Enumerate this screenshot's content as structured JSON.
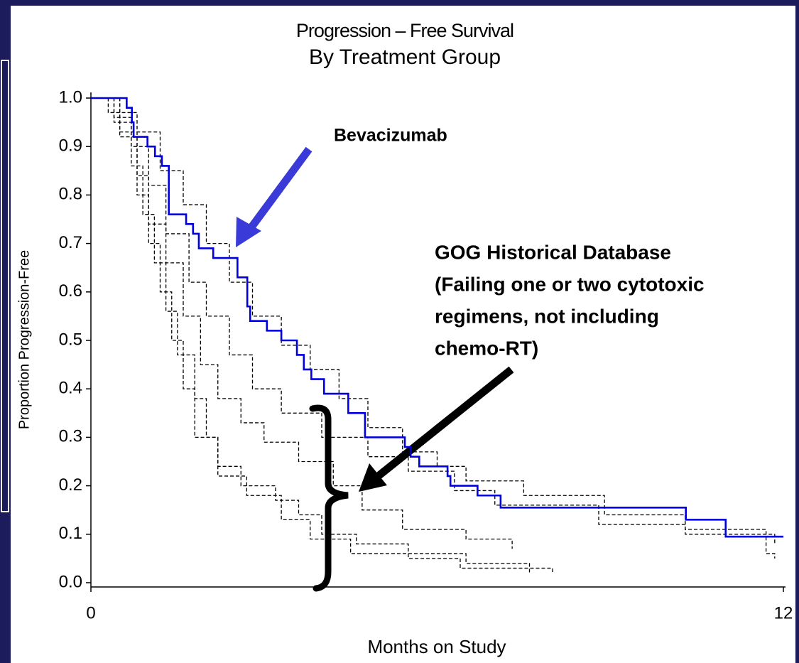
{
  "chart_data": {
    "type": "line",
    "step": "post",
    "title": "Progression – Free  Survival",
    "subtitle": "By Treatment Group",
    "x_label": "Months on Study",
    "y_label": "Proportion Progression-Free",
    "xlim": [
      0,
      12
    ],
    "xticks": [
      0,
      12
    ],
    "ylim": [
      0,
      1
    ],
    "yticks": [
      {
        "value": 0,
        "label": "0.0"
      },
      0.1,
      0.2,
      0.3,
      0.4,
      0.5,
      0.6,
      0.7,
      0.8,
      0.9,
      {
        "value": 1,
        "label": "1.0"
      }
    ],
    "grid": false,
    "series": [
      {
        "color": "#0000dd",
        "dash": false,
        "x": [
          0,
          0.62,
          0.71,
          0.74,
          0.98,
          1.11,
          1.23,
          1.35,
          1.65,
          1.77,
          1.87,
          2.12,
          2.54,
          2.71,
          2.76,
          3.05,
          3.3,
          3.57,
          3.69,
          3.82,
          4.04,
          4.46,
          4.75,
          5.44,
          5.54,
          5.69,
          6.18,
          6.23,
          6.7,
          7.1,
          10.31,
          11.0,
          12.0
        ],
        "values": [
          1.0,
          0.98,
          0.95,
          0.92,
          0.9,
          0.88,
          0.86,
          0.76,
          0.74,
          0.72,
          0.69,
          0.67,
          0.63,
          0.57,
          0.54,
          0.52,
          0.5,
          0.47,
          0.44,
          0.42,
          0.39,
          0.35,
          0.3,
          0.28,
          0.26,
          0.24,
          0.22,
          0.2,
          0.18,
          0.155,
          0.13,
          0.095,
          0.095
        ]
      },
      {
        "color": "#000000",
        "dash": true,
        "x": [
          0,
          0.3,
          0.8,
          1.2,
          1.6,
          2.0,
          2.4,
          2.8,
          3.3,
          3.8,
          4.3,
          4.8,
          5.4,
          6.0,
          6.5,
          7.5,
          8.9,
          10.3,
          11.7,
          11.85
        ],
        "values": [
          1.0,
          0.97,
          0.93,
          0.85,
          0.78,
          0.7,
          0.62,
          0.55,
          0.49,
          0.44,
          0.38,
          0.32,
          0.27,
          0.24,
          0.21,
          0.18,
          0.14,
          0.11,
          0.06,
          0.05
        ]
      },
      {
        "color": "#000000",
        "dash": true,
        "x": [
          0,
          0.4,
          0.7,
          1.0,
          1.3,
          1.7,
          2.0,
          2.4,
          2.8,
          3.3,
          4.0,
          4.8,
          5.5,
          6.3,
          7.0,
          8.8,
          10.3,
          11.85
        ],
        "values": [
          1.0,
          0.96,
          0.9,
          0.82,
          0.72,
          0.62,
          0.55,
          0.47,
          0.4,
          0.35,
          0.3,
          0.26,
          0.23,
          0.19,
          0.16,
          0.12,
          0.1,
          0.08
        ]
      },
      {
        "color": "#000000",
        "dash": true,
        "x": [
          0,
          0.5,
          0.8,
          1.0,
          1.3,
          1.6,
          1.9,
          2.2,
          2.6,
          3.0,
          3.6,
          4.2,
          4.7,
          5.4,
          6.5,
          7.3
        ],
        "values": [
          1.0,
          0.93,
          0.84,
          0.74,
          0.66,
          0.55,
          0.45,
          0.38,
          0.33,
          0.29,
          0.25,
          0.2,
          0.15,
          0.11,
          0.09,
          0.07
        ]
      },
      {
        "color": "#000000",
        "dash": true,
        "x": [
          0,
          0.4,
          0.7,
          0.9,
          1.1,
          1.3,
          1.5,
          1.8,
          2.0,
          2.2,
          2.6,
          3.2,
          3.6,
          4.0,
          4.6,
          5.5,
          6.4,
          8.0
        ],
        "values": [
          1.0,
          0.95,
          0.86,
          0.76,
          0.66,
          0.56,
          0.47,
          0.38,
          0.3,
          0.24,
          0.2,
          0.17,
          0.14,
          0.1,
          0.08,
          0.05,
          0.03,
          0.02
        ]
      },
      {
        "color": "#000000",
        "dash": true,
        "x": [
          0,
          0.5,
          0.8,
          1.0,
          1.2,
          1.4,
          1.6,
          1.8,
          2.2,
          2.7,
          3.3,
          3.8,
          4.5,
          6.5,
          7.6
        ],
        "values": [
          1.0,
          0.92,
          0.8,
          0.7,
          0.6,
          0.5,
          0.4,
          0.3,
          0.22,
          0.18,
          0.13,
          0.09,
          0.06,
          0.04,
          0.02
        ]
      }
    ],
    "annotations": [
      {
        "text": "Bevacizumab",
        "color": "#3333cc"
      },
      {
        "lines": [
          "GOG Historical Database",
          "(Failing one or two cytotoxic",
          "regimens, not including",
          "chemo-RT)"
        ],
        "color": "#000000"
      }
    ]
  }
}
